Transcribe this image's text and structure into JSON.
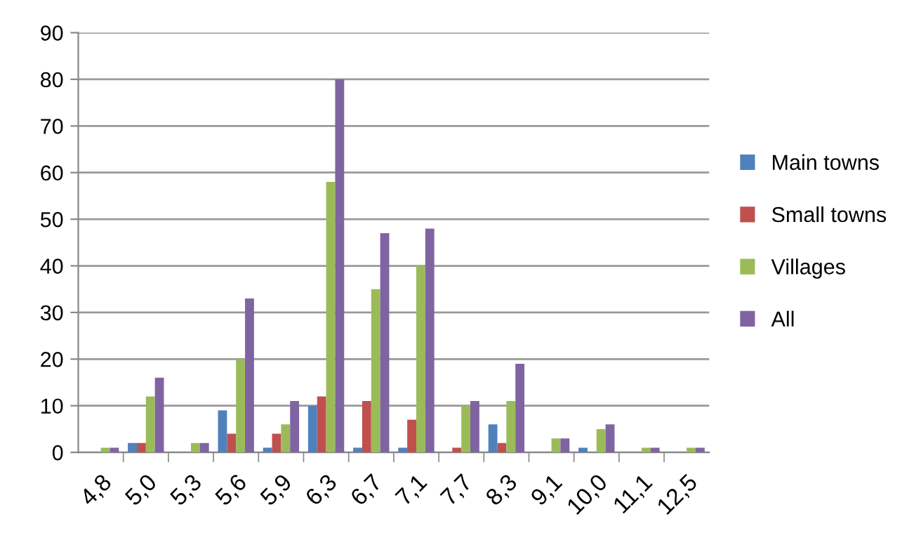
{
  "chart_data": {
    "type": "bar",
    "categories": [
      "4,8",
      "5,0",
      "5,3",
      "5,6",
      "5,9",
      "6,3",
      "6,7",
      "7,1",
      "7,7",
      "8,3",
      "9,1",
      "10,0",
      "11,1",
      "12,5"
    ],
    "series": [
      {
        "name": "Main towns",
        "color": "#4f81bd",
        "values": [
          0,
          2,
          0,
          9,
          1,
          10,
          1,
          1,
          0,
          6,
          0,
          1,
          0,
          0
        ]
      },
      {
        "name": "Small towns",
        "color": "#c0504d",
        "values": [
          0,
          2,
          0,
          4,
          4,
          12,
          11,
          7,
          1,
          2,
          0,
          0,
          0,
          0
        ]
      },
      {
        "name": "Villages",
        "color": "#9bbb59",
        "values": [
          1,
          12,
          2,
          20,
          6,
          58,
          35,
          40,
          10,
          11,
          3,
          5,
          1,
          1
        ]
      },
      {
        "name": "All",
        "color": "#8064a2",
        "values": [
          1,
          16,
          2,
          33,
          11,
          80,
          47,
          48,
          11,
          19,
          3,
          6,
          1,
          1
        ]
      }
    ],
    "ylim": [
      0,
      90
    ],
    "yticks": [
      0,
      10,
      20,
      30,
      40,
      50,
      60,
      70,
      80,
      90
    ],
    "grid": "y",
    "legend": "right"
  }
}
